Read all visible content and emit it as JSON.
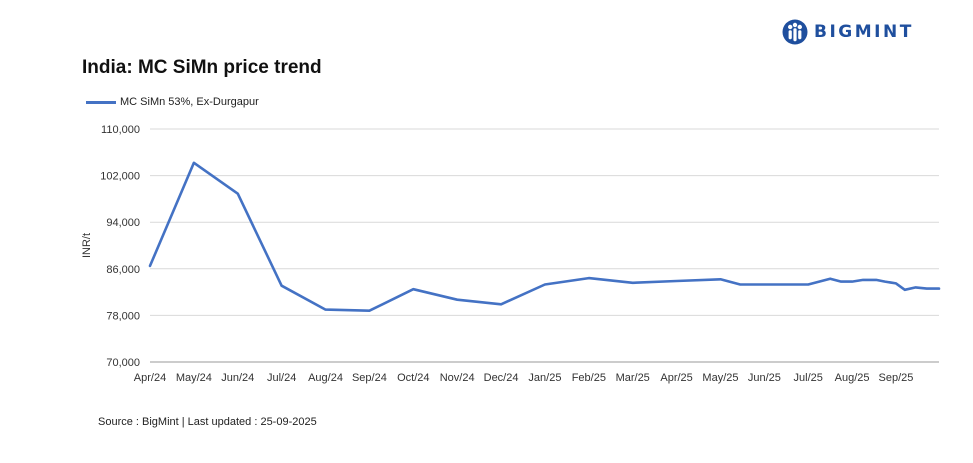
{
  "brand": {
    "name": "BIGMINT",
    "color": "#1f4f9e"
  },
  "title": "India: MC SiMn price trend",
  "source_note": "Source : BigMint | Last updated : 25-09-2025",
  "chart_data": {
    "type": "line",
    "title": "India: MC SiMn price trend",
    "xlabel": "",
    "ylabel": "INR/t",
    "ylim": [
      70000,
      110000
    ],
    "yticks": [
      70000,
      78000,
      86000,
      94000,
      102000,
      110000
    ],
    "ytick_labels": [
      "70,000",
      "78,000",
      "86,000",
      "94,000",
      "102,000",
      "110,000"
    ],
    "xlim": [
      0,
      17.98
    ],
    "xtick_positions": [
      0,
      1,
      2,
      3,
      4,
      5,
      6,
      7,
      8,
      9,
      10,
      11,
      12,
      13,
      14,
      15,
      16,
      17
    ],
    "xtick_labels": [
      "Apr/24",
      "May/24",
      "Jun/24",
      "Jul/24",
      "Aug/24",
      "Sep/24",
      "Oct/24",
      "Nov/24",
      "Dec/24",
      "Jan/25",
      "Feb/25",
      "Mar/25",
      "Apr/25",
      "May/25",
      "Jun/25",
      "Jul/25",
      "Aug/25",
      "Sep/25"
    ],
    "legend_position": "top-left",
    "grid": "horizontal",
    "series": [
      {
        "name": "MC SiMn 53%, Ex-Durgapur",
        "color": "#4472c4",
        "x": [
          0,
          1,
          2,
          3,
          4,
          5,
          6,
          7,
          8,
          9,
          10,
          11,
          12,
          13,
          13.45,
          14,
          15,
          15.5,
          15.75,
          16,
          16.25,
          16.55,
          16.75,
          17,
          17.2,
          17.45,
          17.7,
          17.98
        ],
        "y": [
          86500,
          104200,
          98900,
          83100,
          79000,
          78800,
          82500,
          80700,
          79900,
          83300,
          84400,
          83600,
          83900,
          84200,
          83300,
          83300,
          83300,
          84300,
          83800,
          83800,
          84100,
          84100,
          83800,
          83500,
          82400,
          82800,
          82600,
          82600
        ]
      }
    ]
  }
}
